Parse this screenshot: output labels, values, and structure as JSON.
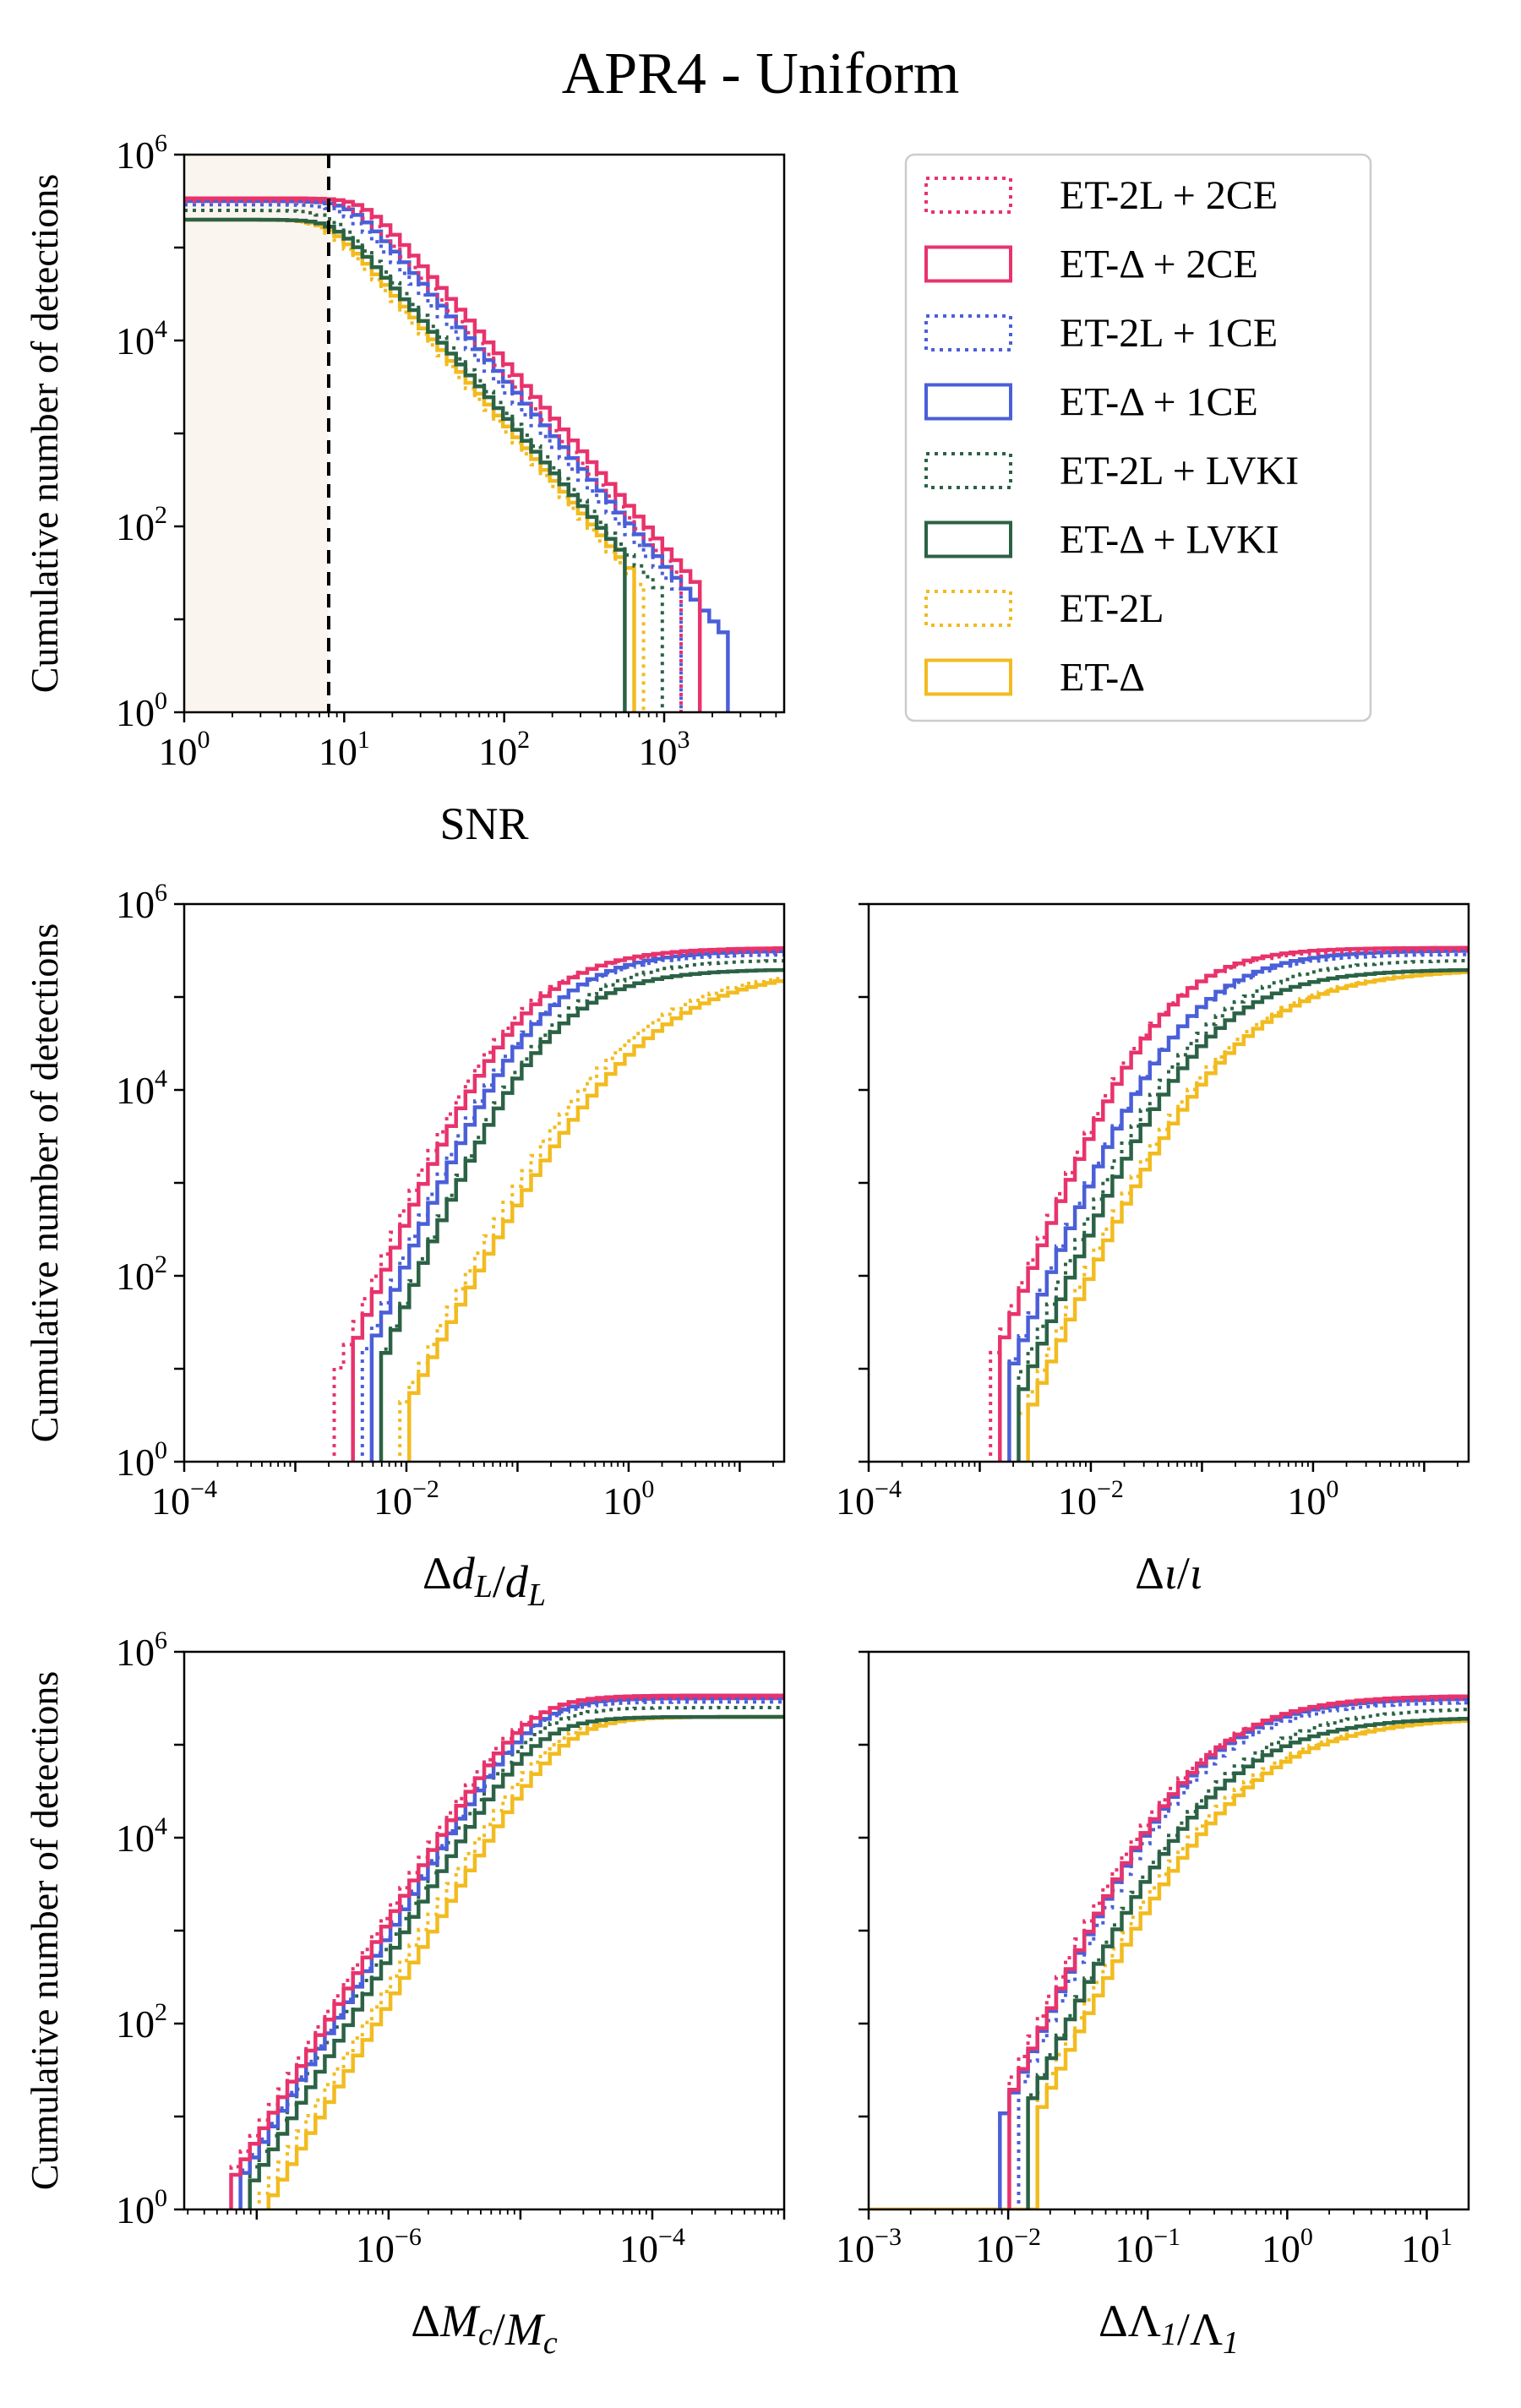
{
  "title": "APR4 - Uniform",
  "colors": {
    "ET-2L + 2CE": "#e8336c",
    "ET-Δ + 2CE": "#e8336c",
    "ET-2L + 1CE": "#4a5fd8",
    "ET-Δ + 1CE": "#4a5fd8",
    "ET-2L + LVKI": "#2b6245",
    "ET-Δ + LVKI": "#2b6245",
    "ET-2L": "#f2bb1f",
    "ET-Δ": "#f2bb1f"
  },
  "legend": [
    {
      "label": "ET-2L + 2CE",
      "style": "dotted"
    },
    {
      "label": "ET-Δ + 2CE",
      "style": "solid"
    },
    {
      "label": "ET-2L + 1CE",
      "style": "dotted"
    },
    {
      "label": "ET-Δ + 1CE",
      "style": "solid"
    },
    {
      "label": "ET-2L + LVKI",
      "style": "dotted"
    },
    {
      "label": "ET-Δ + LVKI",
      "style": "solid"
    },
    {
      "label": "ET-2L",
      "style": "dotted"
    },
    {
      "label": "ET-Δ",
      "style": "solid"
    }
  ],
  "chart_data": [
    {
      "id": "snr",
      "type": "line",
      "subtype": "cumulative-step-histogram",
      "xlabel": "SNR",
      "ylabel": "Cumulative number of detections",
      "xscale": "log",
      "yscale": "log",
      "xlim_log10": [
        0,
        3.75
      ],
      "ylim_log10": [
        0,
        6
      ],
      "xticks": [
        {
          "exp": 0,
          "base": "10",
          "sup": "0"
        },
        {
          "exp": 1,
          "base": "10",
          "sup": "1"
        },
        {
          "exp": 2,
          "base": "10",
          "sup": "2"
        },
        {
          "exp": 3,
          "base": "10",
          "sup": "3"
        }
      ],
      "yticks": [
        {
          "exp": 0,
          "base": "10",
          "sup": "0"
        },
        {
          "exp": 2,
          "base": "10",
          "sup": "2"
        },
        {
          "exp": 4,
          "base": "10",
          "sup": "4"
        },
        {
          "exp": 6,
          "base": "10",
          "sup": "6"
        }
      ],
      "show_yticklabels": true,
      "threshold_snr": 8,
      "shaded_region": [
        1,
        8
      ],
      "series": [
        {
          "name": "ET-2L + 2CE",
          "style": "dotted",
          "plateau_log10": 5.5,
          "mode": "survival",
          "knee_log10": 1.05,
          "slope": 2.0,
          "soft": 0.08,
          "end_log10": 3.1
        },
        {
          "name": "ET-Δ + 2CE",
          "style": "solid",
          "plateau_log10": 5.53,
          "mode": "survival",
          "knee_log10": 1.1,
          "slope": 2.0,
          "soft": 0.08,
          "end_log10": 3.2
        },
        {
          "name": "ET-2L + 1CE",
          "style": "dotted",
          "plateau_log10": 5.46,
          "mode": "survival",
          "knee_log10": 0.98,
          "slope": 2.0,
          "soft": 0.08,
          "end_log10": 3.05
        },
        {
          "name": "ET-Δ + 1CE",
          "style": "solid",
          "plateau_log10": 5.5,
          "mode": "survival",
          "knee_log10": 1.02,
          "slope": 2.0,
          "soft": 0.08,
          "end_log10": 3.35
        },
        {
          "name": "ET-2L + LVKI",
          "style": "dotted",
          "plateau_log10": 5.4,
          "mode": "survival",
          "knee_log10": 0.9,
          "slope": 2.0,
          "soft": 0.08,
          "end_log10": 2.95
        },
        {
          "name": "ET-Δ + LVKI",
          "style": "solid",
          "plateau_log10": 5.3,
          "mode": "survival",
          "knee_log10": 0.92,
          "slope": 2.0,
          "soft": 0.08,
          "end_log10": 2.75
        },
        {
          "name": "ET-2L",
          "style": "dotted",
          "plateau_log10": 5.3,
          "mode": "survival",
          "knee_log10": 0.85,
          "slope": 2.0,
          "soft": 0.08,
          "end_log10": 2.82
        },
        {
          "name": "ET-Δ",
          "style": "solid",
          "plateau_log10": 5.3,
          "mode": "survival",
          "knee_log10": 0.88,
          "slope": 2.0,
          "soft": 0.08,
          "end_log10": 2.78
        }
      ]
    },
    {
      "id": "dl",
      "type": "line",
      "subtype": "cumulative-step-histogram",
      "xlabel": "Δd_L/d_L",
      "ylabel": "Cumulative number of detections",
      "xscale": "log",
      "yscale": "log",
      "xlim_log10": [
        -4,
        1.4
      ],
      "ylim_log10": [
        0,
        6
      ],
      "xticks": [
        {
          "exp": -4,
          "base": "10",
          "sup": "−4"
        },
        {
          "exp": -2,
          "base": "10",
          "sup": "−2"
        },
        {
          "exp": 0,
          "base": "10",
          "sup": "0"
        }
      ],
      "yticks": [
        {
          "exp": 0,
          "base": "10",
          "sup": "0"
        },
        {
          "exp": 2,
          "base": "10",
          "sup": "2"
        },
        {
          "exp": 4,
          "base": "10",
          "sup": "4"
        },
        {
          "exp": 6,
          "base": "10",
          "sup": "6"
        }
      ],
      "show_yticklabels": true,
      "series": [
        {
          "name": "ET-2L + 2CE",
          "style": "dotted",
          "plateau_log10": 5.5,
          "mode": "cumulative",
          "start_log10": -2.72,
          "knee_log10": -1.22,
          "slope": 3.1,
          "soft": 0.45
        },
        {
          "name": "ET-Δ + 2CE",
          "style": "solid",
          "plateau_log10": 5.53,
          "mode": "cumulative",
          "start_log10": -2.55,
          "knee_log10": -1.15,
          "slope": 3.1,
          "soft": 0.45
        },
        {
          "name": "ET-2L + 1CE",
          "style": "dotted",
          "plateau_log10": 5.46,
          "mode": "cumulative",
          "start_log10": -2.45,
          "knee_log10": -1.05,
          "slope": 3.1,
          "soft": 0.45
        },
        {
          "name": "ET-Δ + 1CE",
          "style": "solid",
          "plateau_log10": 5.5,
          "mode": "cumulative",
          "start_log10": -2.35,
          "knee_log10": -1.0,
          "slope": 3.1,
          "soft": 0.45
        },
        {
          "name": "ET-2L + LVKI",
          "style": "dotted",
          "plateau_log10": 5.4,
          "mode": "cumulative",
          "start_log10": -2.3,
          "knee_log10": -0.9,
          "slope": 3.1,
          "soft": 0.45
        },
        {
          "name": "ET-Δ + LVKI",
          "style": "solid",
          "plateau_log10": 5.3,
          "mode": "cumulative",
          "start_log10": -2.3,
          "knee_log10": -0.92,
          "slope": 3.1,
          "soft": 0.45
        },
        {
          "name": "ET-2L",
          "style": "dotted",
          "plateau_log10": 5.3,
          "mode": "cumulative",
          "start_log10": -2.1,
          "knee_log10": -0.3,
          "slope": 2.6,
          "soft": 0.6
        },
        {
          "name": "ET-Δ",
          "style": "solid",
          "plateau_log10": 5.3,
          "mode": "cumulative",
          "start_log10": -2.05,
          "knee_log10": -0.1,
          "slope": 2.4,
          "soft": 0.6
        }
      ]
    },
    {
      "id": "iota",
      "type": "line",
      "subtype": "cumulative-step-histogram",
      "xlabel": "Δι/ι",
      "ylabel": "",
      "xscale": "log",
      "yscale": "log",
      "xlim_log10": [
        -4,
        1.4
      ],
      "ylim_log10": [
        0,
        6
      ],
      "xticks": [
        {
          "exp": -4,
          "base": "10",
          "sup": "−4"
        },
        {
          "exp": -2,
          "base": "10",
          "sup": "−2"
        },
        {
          "exp": 0,
          "base": "10",
          "sup": "0"
        }
      ],
      "yticks": [
        {
          "exp": 0,
          "base": "10",
          "sup": "0"
        },
        {
          "exp": 2,
          "base": "10",
          "sup": "2"
        },
        {
          "exp": 4,
          "base": "10",
          "sup": "4"
        },
        {
          "exp": 6,
          "base": "10",
          "sup": "6"
        }
      ],
      "show_yticklabels": false,
      "series": [
        {
          "name": "ET-2L + 2CE",
          "style": "dotted",
          "plateau_log10": 5.5,
          "mode": "cumulative",
          "start_log10": -2.92,
          "knee_log10": -1.52,
          "slope": 3.1,
          "soft": 0.4
        },
        {
          "name": "ET-Δ + 2CE",
          "style": "solid",
          "plateau_log10": 5.53,
          "mode": "cumulative",
          "start_log10": -2.88,
          "knee_log10": -1.48,
          "slope": 3.1,
          "soft": 0.4
        },
        {
          "name": "ET-2L + 1CE",
          "style": "dotted",
          "plateau_log10": 5.46,
          "mode": "cumulative",
          "start_log10": -2.8,
          "knee_log10": -1.35,
          "slope": 3.1,
          "soft": 0.45
        },
        {
          "name": "ET-Δ + 1CE",
          "style": "solid",
          "plateau_log10": 5.5,
          "mode": "cumulative",
          "start_log10": -2.78,
          "knee_log10": -1.32,
          "slope": 3.1,
          "soft": 0.45
        },
        {
          "name": "ET-2L + LVKI",
          "style": "dotted",
          "plateau_log10": 5.4,
          "mode": "cumulative",
          "start_log10": -2.72,
          "knee_log10": -1.25,
          "slope": 3.1,
          "soft": 0.5
        },
        {
          "name": "ET-Δ + LVKI",
          "style": "solid",
          "plateau_log10": 5.3,
          "mode": "cumulative",
          "start_log10": -2.7,
          "knee_log10": -1.22,
          "slope": 3.1,
          "soft": 0.5
        },
        {
          "name": "ET-2L",
          "style": "dotted",
          "plateau_log10": 5.3,
          "mode": "cumulative",
          "start_log10": -2.65,
          "knee_log10": -1.1,
          "slope": 3.0,
          "soft": 0.6
        },
        {
          "name": "ET-Δ",
          "style": "solid",
          "plateau_log10": 5.3,
          "mode": "cumulative",
          "start_log10": -2.62,
          "knee_log10": -1.05,
          "slope": 3.0,
          "soft": 0.6
        }
      ]
    },
    {
      "id": "mc",
      "type": "line",
      "subtype": "cumulative-step-histogram",
      "xlabel": "ΔM_c/M_c",
      "ylabel": "Cumulative number of detections",
      "xscale": "log",
      "yscale": "log",
      "xlim_log10": [
        -7.55,
        -3.0
      ],
      "ylim_log10": [
        0,
        6
      ],
      "xticks": [
        {
          "exp": -6,
          "base": "10",
          "sup": "−6"
        },
        {
          "exp": -4,
          "base": "10",
          "sup": "−4"
        }
      ],
      "yticks": [
        {
          "exp": 0,
          "base": "10",
          "sup": "0"
        },
        {
          "exp": 2,
          "base": "10",
          "sup": "2"
        },
        {
          "exp": 4,
          "base": "10",
          "sup": "4"
        },
        {
          "exp": 6,
          "base": "10",
          "sup": "6"
        }
      ],
      "show_yticklabels": true,
      "series": [
        {
          "name": "ET-2L + 2CE",
          "style": "dotted",
          "plateau_log10": 5.5,
          "mode": "cumulative",
          "start_log10": -7.25,
          "knee_log10": -5.05,
          "slope": 2.35,
          "soft": 0.2
        },
        {
          "name": "ET-Δ + 2CE",
          "style": "solid",
          "plateau_log10": 5.53,
          "mode": "cumulative",
          "start_log10": -7.2,
          "knee_log10": -5.0,
          "slope": 2.35,
          "soft": 0.2
        },
        {
          "name": "ET-2L + 1CE",
          "style": "dotted",
          "plateau_log10": 5.46,
          "mode": "cumulative",
          "start_log10": -7.18,
          "knee_log10": -4.98,
          "slope": 2.35,
          "soft": 0.2
        },
        {
          "name": "ET-Δ + 1CE",
          "style": "solid",
          "plateau_log10": 5.5,
          "mode": "cumulative",
          "start_log10": -7.15,
          "knee_log10": -4.95,
          "slope": 2.35,
          "soft": 0.2
        },
        {
          "name": "ET-2L + LVKI",
          "style": "dotted",
          "plateau_log10": 5.4,
          "mode": "cumulative",
          "start_log10": -7.12,
          "knee_log10": -4.95,
          "slope": 2.35,
          "soft": 0.2
        },
        {
          "name": "ET-Δ + LVKI",
          "style": "solid",
          "plateau_log10": 5.3,
          "mode": "cumulative",
          "start_log10": -7.1,
          "knee_log10": -4.93,
          "slope": 2.35,
          "soft": 0.2
        },
        {
          "name": "ET-2L",
          "style": "dotted",
          "plateau_log10": 5.3,
          "mode": "cumulative",
          "start_log10": -7.0,
          "knee_log10": -4.8,
          "slope": 2.35,
          "soft": 0.2
        },
        {
          "name": "ET-Δ",
          "style": "solid",
          "plateau_log10": 5.3,
          "mode": "cumulative",
          "start_log10": -6.95,
          "knee_log10": -4.72,
          "slope": 2.35,
          "soft": 0.2
        }
      ]
    },
    {
      "id": "lambda",
      "type": "line",
      "subtype": "cumulative-step-histogram",
      "xlabel": "ΔΛ_1/Λ_1",
      "ylabel": "",
      "xscale": "log",
      "yscale": "log",
      "xlim_log10": [
        -3,
        1.3
      ],
      "ylim_log10": [
        0,
        6
      ],
      "xticks": [
        {
          "exp": -3,
          "base": "10",
          "sup": "−3"
        },
        {
          "exp": -2,
          "base": "10",
          "sup": "−2"
        },
        {
          "exp": -1,
          "base": "10",
          "sup": "−1"
        },
        {
          "exp": 0,
          "base": "10",
          "sup": "0"
        },
        {
          "exp": 1,
          "base": "10",
          "sup": "1"
        }
      ],
      "yticks": [
        {
          "exp": 0,
          "base": "10",
          "sup": "0"
        },
        {
          "exp": 2,
          "base": "10",
          "sup": "2"
        },
        {
          "exp": 4,
          "base": "10",
          "sup": "4"
        },
        {
          "exp": 6,
          "base": "10",
          "sup": "6"
        }
      ],
      "show_yticklabels": false,
      "series": [
        {
          "name": "ET-2L + 2CE",
          "style": "dotted",
          "plateau_log10": 5.5,
          "mode": "cumulative",
          "start_log10": -2.05,
          "knee_log10": -0.85,
          "slope": 3.5,
          "soft": 0.4
        },
        {
          "name": "ET-Δ + 2CE",
          "style": "solid",
          "plateau_log10": 5.53,
          "mode": "cumulative",
          "start_log10": -2.0,
          "knee_log10": -0.8,
          "slope": 3.5,
          "soft": 0.4
        },
        {
          "name": "ET-2L + 1CE",
          "style": "dotted",
          "plateau_log10": 5.46,
          "mode": "cumulative",
          "start_log10": -1.98,
          "knee_log10": -0.78,
          "slope": 3.5,
          "soft": 0.4
        },
        {
          "name": "ET-Δ + 1CE",
          "style": "solid",
          "plateau_log10": 5.5,
          "mode": "cumulative",
          "start_log10": -2.1,
          "knee_log10": -0.8,
          "slope": 3.5,
          "soft": 0.4
        },
        {
          "name": "ET-2L + LVKI",
          "style": "dotted",
          "plateau_log10": 5.4,
          "mode": "cumulative",
          "start_log10": -1.88,
          "knee_log10": -0.7,
          "slope": 3.5,
          "soft": 0.45
        },
        {
          "name": "ET-Δ + LVKI",
          "style": "solid",
          "plateau_log10": 5.3,
          "mode": "cumulative",
          "start_log10": -1.92,
          "knee_log10": -0.72,
          "slope": 3.5,
          "soft": 0.45
        },
        {
          "name": "ET-2L",
          "style": "dotted",
          "plateau_log10": 5.3,
          "mode": "cumulative",
          "start_log10": -1.85,
          "knee_log10": -0.65,
          "slope": 3.4,
          "soft": 0.5
        },
        {
          "name": "ET-Δ",
          "style": "solid",
          "plateau_log10": 5.3,
          "mode": "cumulative",
          "start_log10": -1.82,
          "knee_log10": -0.6,
          "slope": 3.4,
          "soft": 0.5,
          "floor_from_log10": -3
        }
      ]
    }
  ]
}
